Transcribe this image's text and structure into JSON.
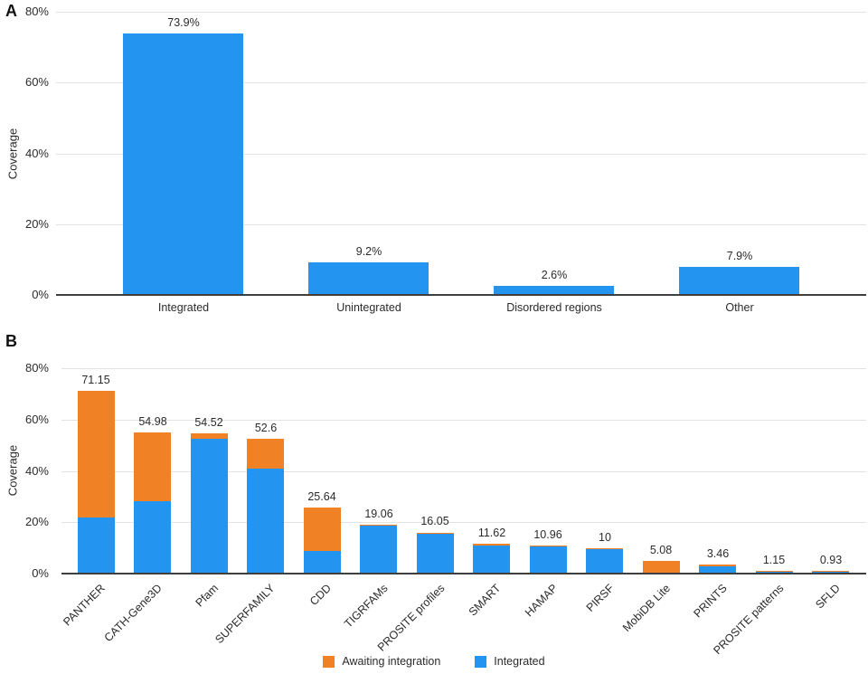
{
  "colors": {
    "integrated_blue": "#2494F1",
    "awaiting_orange": "#F08124",
    "gridline": "#e3e3e3",
    "axis": "#3f3f3f",
    "text": "#2b2b2b"
  },
  "legend": {
    "items": [
      {
        "label": "Awaiting integration",
        "color": "#F08124"
      },
      {
        "label": "Integrated",
        "color": "#2494F1"
      }
    ]
  },
  "chart_data": [
    {
      "id": "A",
      "type": "bar",
      "panel_label": "A",
      "title": "",
      "xlabel": "",
      "ylabel": "Coverage",
      "ylim": [
        0,
        80
      ],
      "yticks": [
        0,
        20,
        40,
        60,
        80
      ],
      "ytick_labels": [
        "0%",
        "20%",
        "40%",
        "60%",
        "80%"
      ],
      "grid": true,
      "rotate_labels": false,
      "categories": [
        "Integrated",
        "Unintegrated",
        "Disordered regions",
        "Other"
      ],
      "series": [
        {
          "name": "Coverage",
          "color": "#2494F1",
          "values": [
            73.9,
            9.2,
            2.6,
            7.9
          ]
        }
      ],
      "data_labels": [
        "73.9%",
        "9.2%",
        "2.6%",
        "7.9%"
      ]
    },
    {
      "id": "B",
      "type": "bar",
      "stacked": true,
      "panel_label": "B",
      "title": "",
      "xlabel": "",
      "ylabel": "Coverage",
      "ylim": [
        0,
        80
      ],
      "yticks": [
        0,
        20,
        40,
        60,
        80
      ],
      "ytick_labels": [
        "0%",
        "20%",
        "40%",
        "60%",
        "80%"
      ],
      "grid": true,
      "rotate_labels": true,
      "legend_position": "bottom",
      "categories": [
        "PANTHER",
        "CATH-Gene3D",
        "Pfam",
        "SUPERFAMILY",
        "CDD",
        "TIGRFAMs",
        "PROSITE profiles",
        "SMART",
        "HAMAP",
        "PIRSF",
        "MobiDB Lite",
        "PRINTS",
        "PROSITE patterns",
        "SFLD"
      ],
      "series": [
        {
          "name": "Integrated",
          "color": "#2494F1",
          "values": [
            21.8,
            28.2,
            52.4,
            40.9,
            8.9,
            18.6,
            15.6,
            11.1,
            10.75,
            9.4,
            0,
            2.85,
            1.05,
            0.65
          ]
        },
        {
          "name": "Awaiting integration",
          "color": "#F08124",
          "values": [
            49.35,
            26.78,
            2.12,
            11.7,
            16.74,
            0.46,
            0.45,
            0.52,
            0.21,
            0.6,
            5.08,
            0.61,
            0.1,
            0.28
          ]
        }
      ],
      "totals": [
        71.15,
        54.98,
        54.52,
        52.6,
        25.64,
        19.06,
        16.05,
        11.62,
        10.96,
        10,
        5.08,
        3.46,
        1.15,
        0.93
      ],
      "data_labels": [
        "71.15",
        "54.98",
        "54.52",
        "52.6",
        "25.64",
        "19.06",
        "16.05",
        "11.62",
        "10.96",
        "10",
        "5.08",
        "3.46",
        "1.15",
        "0.93"
      ]
    }
  ]
}
